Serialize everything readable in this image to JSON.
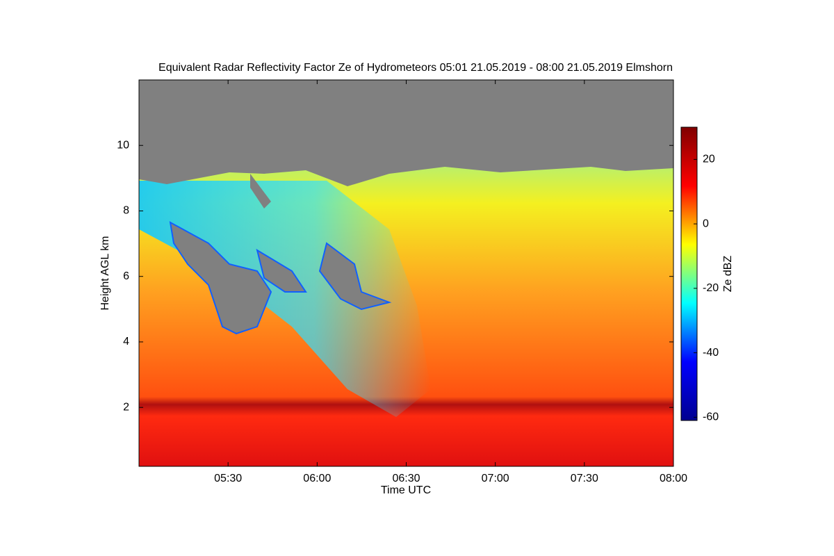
{
  "chart_data": {
    "type": "heatmap",
    "title": "Equivalent Radar Reflectivity Factor Ze of Hydrometeors   05:01 21.05.2019 - 08:00 21.05.2019 Elmshorn",
    "xlabel": "Time UTC",
    "ylabel": "Height AGL km",
    "colorbar_label": "Ze dBZ",
    "xlim": [
      300,
      480
    ],
    "xticks": [
      {
        "value": 330,
        "label": "05:30"
      },
      {
        "value": 360,
        "label": "06:00"
      },
      {
        "value": 390,
        "label": "06:30"
      },
      {
        "value": 420,
        "label": "07:00"
      },
      {
        "value": 450,
        "label": "07:30"
      },
      {
        "value": 480,
        "label": "08:00"
      }
    ],
    "ylim": [
      0.2,
      12
    ],
    "yticks": [
      2,
      4,
      6,
      8,
      10
    ],
    "clim": [
      -61,
      30
    ],
    "cticks": [
      -60,
      -40,
      -20,
      0,
      20
    ],
    "colormap": [
      "#00008f",
      "#0000ff",
      "#00ffff",
      "#ffff00",
      "#ff0000",
      "#800000"
    ]
  }
}
